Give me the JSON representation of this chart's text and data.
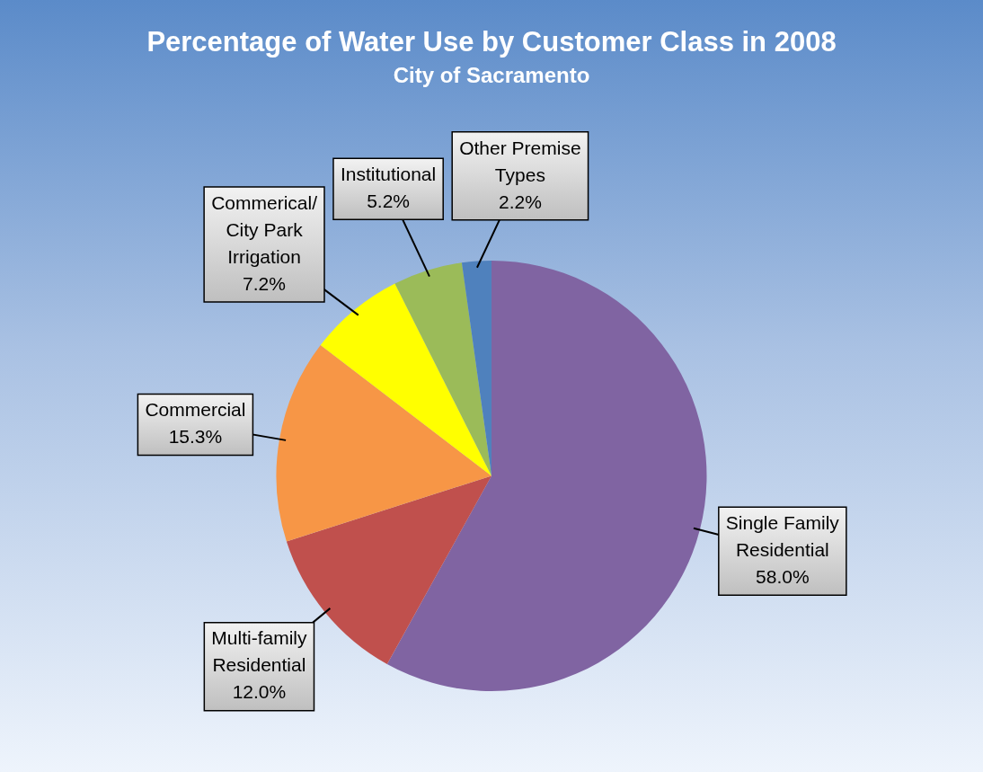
{
  "chart_data": {
    "type": "pie",
    "title": "Percentage of Water Use by Customer Class in 2008",
    "subtitle": "City of Sacramento",
    "categories": [
      "Single Family Residential",
      "Multi-family Residential",
      "Commercial",
      "Commerical/ City Park Irrigation",
      "Institutional",
      "Other Premise Types"
    ],
    "values": [
      58.0,
      12.0,
      15.3,
      7.2,
      5.2,
      2.2
    ],
    "value_labels": [
      "58.0%",
      "12.0%",
      "15.3%",
      "7.2%",
      "5.2%",
      "2.2%"
    ],
    "colors": [
      "#8064a2",
      "#c0504d",
      "#f79646",
      "#ffff00",
      "#9bbb59",
      "#4f81bd"
    ],
    "legend": false
  }
}
